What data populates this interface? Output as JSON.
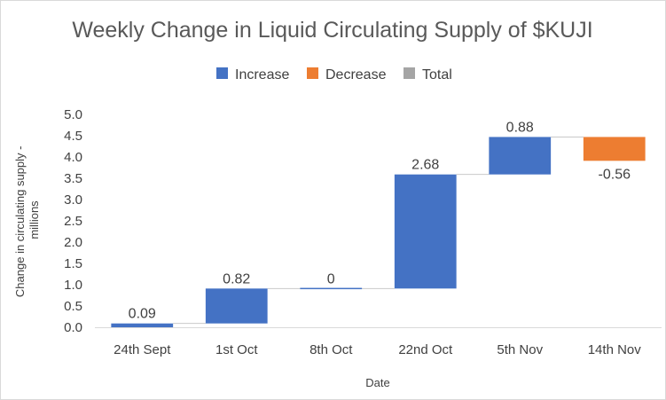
{
  "chart_data": {
    "type": "waterfall",
    "title": "Weekly Change in Liquid Circulating Supply of $KUJI",
    "xlabel": "Date",
    "ylabel_lines": [
      "Change in circulating supply -",
      "millions"
    ],
    "ylim": [
      0,
      5.0
    ],
    "ytick_labels": [
      "0.0",
      "0.5",
      "1.0",
      "1.5",
      "2.0",
      "2.5",
      "3.0",
      "3.5",
      "4.0",
      "4.5",
      "5.0"
    ],
    "legend": [
      {
        "label": "Increase",
        "color": "#4472c4"
      },
      {
        "label": "Decrease",
        "color": "#ed7d31"
      },
      {
        "label": "Total",
        "color": "#a5a5a5"
      }
    ],
    "legend_position": "top",
    "grid": false,
    "categories": [
      "24th Sept",
      "1st Oct",
      "8th Oct",
      "22nd Oct",
      "5th Nov",
      "14th Nov"
    ],
    "values": [
      0.09,
      0.82,
      0,
      2.68,
      0.88,
      -0.56
    ],
    "data_labels": [
      "0.09",
      "0.82",
      "0",
      "2.68",
      "0.88",
      "-0.56"
    ],
    "colors": {
      "increase": "#4472c4",
      "decrease": "#ed7d31",
      "total": "#a5a5a5",
      "text": "#404040",
      "axis": "#d9d9d9"
    }
  }
}
